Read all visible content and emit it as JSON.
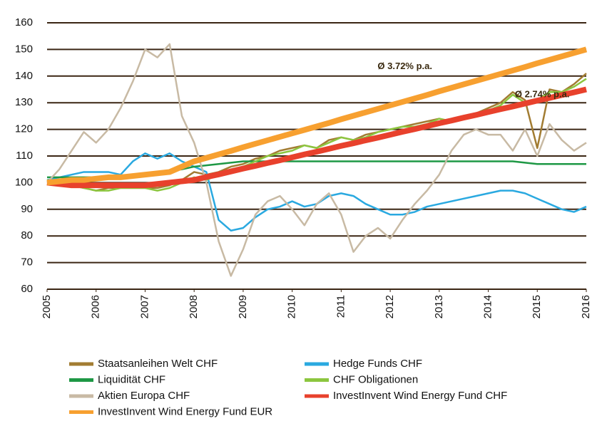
{
  "chart_data": {
    "type": "line",
    "x": [
      2005,
      2005.25,
      2005.5,
      2005.75,
      2006,
      2006.25,
      2006.5,
      2006.75,
      2007,
      2007.25,
      2007.5,
      2007.75,
      2008,
      2008.25,
      2008.5,
      2008.75,
      2009,
      2009.25,
      2009.5,
      2009.75,
      2010,
      2010.25,
      2010.5,
      2010.75,
      2011,
      2011.25,
      2011.5,
      2011.75,
      2012,
      2012.25,
      2012.5,
      2012.75,
      2013,
      2013.25,
      2013.5,
      2013.75,
      2014,
      2014.25,
      2014.5,
      2014.75,
      2015,
      2015.25,
      2015.5,
      2015.75,
      2016
    ],
    "xlim": [
      2005,
      2016
    ],
    "xticks": [
      2005,
      2006,
      2007,
      2008,
      2009,
      2010,
      2011,
      2012,
      2013,
      2014,
      2015,
      2016
    ],
    "ylim": [
      60,
      160
    ],
    "yticks": [
      60,
      70,
      80,
      90,
      100,
      110,
      120,
      130,
      140,
      150,
      160
    ],
    "grid": true,
    "series": [
      {
        "name": "Staatsanleihen Welt CHF",
        "color": "#a27c32",
        "width": 2.5,
        "values": [
          101,
          100,
          99,
          98,
          97,
          98,
          98,
          98,
          98,
          98,
          99,
          101,
          104,
          103,
          104,
          106,
          107,
          109,
          110,
          112,
          113,
          114,
          113,
          116,
          117,
          116,
          118,
          119,
          120,
          121,
          122,
          123,
          124,
          123,
          124,
          126,
          128,
          130,
          134,
          131,
          113,
          135,
          134,
          137,
          141
        ]
      },
      {
        "name": "Hedge Funds CHF",
        "color": "#2aa9e0",
        "width": 2.5,
        "values": [
          101,
          102,
          103,
          104,
          104,
          104,
          103,
          108,
          111,
          109,
          111,
          108,
          106,
          104,
          86,
          82,
          83,
          87,
          90,
          91,
          93,
          91,
          92,
          95,
          96,
          95,
          92,
          90,
          88,
          88,
          89,
          91,
          92,
          93,
          94,
          95,
          96,
          97,
          97,
          96,
          94,
          92,
          90,
          89,
          91
        ]
      },
      {
        "name": "Liquidität CHF",
        "color": "#1e9845",
        "width": 2.5,
        "values": [
          102,
          102,
          102,
          102,
          102,
          102,
          102.5,
          103,
          103.5,
          104,
          104.5,
          105,
          106,
          106.5,
          107,
          107.5,
          108,
          108,
          108,
          108,
          108,
          108,
          108,
          108,
          108,
          108,
          108,
          108,
          108,
          108,
          108,
          108,
          108,
          108,
          108,
          108,
          108,
          108,
          108,
          107.5,
          107,
          107,
          107,
          107,
          107
        ]
      },
      {
        "name": "CHF Obligationen",
        "color": "#8cc63f",
        "width": 2.5,
        "values": [
          101,
          100,
          99,
          98,
          97,
          97,
          98,
          98,
          98,
          97,
          98,
          100,
          102,
          101,
          103,
          105,
          106,
          108,
          110,
          111,
          112,
          114,
          113,
          115,
          117,
          116,
          117,
          119,
          120,
          121,
          121,
          122,
          124,
          123,
          124,
          125,
          127,
          129,
          133,
          130,
          131,
          134,
          134,
          136,
          139
        ]
      },
      {
        "name": "Aktien Europa CHF",
        "color": "#c8baa4",
        "width": 2.5,
        "values": [
          100,
          105,
          112,
          119,
          115,
          120,
          128,
          138,
          150,
          147,
          152,
          125,
          115,
          100,
          78,
          65,
          75,
          88,
          93,
          95,
          90,
          84,
          92,
          96,
          88,
          74,
          80,
          83,
          79,
          86,
          92,
          97,
          103,
          112,
          118,
          120,
          118,
          118,
          112,
          120,
          110,
          122,
          116,
          112,
          115
        ]
      },
      {
        "name": "InvestInvent Wind Energy Fund CHF",
        "color": "#e8412c",
        "width": 8,
        "values": [
          100,
          99.5,
          99,
          99,
          99,
          99,
          99,
          99,
          99,
          99.5,
          100,
          100.5,
          101,
          102.1,
          103.1,
          104.2,
          105.3,
          106.3,
          107.4,
          108.4,
          109.5,
          110.6,
          111.6,
          112.7,
          113.8,
          114.8,
          115.9,
          116.9,
          118,
          119.1,
          120.1,
          121.2,
          122.3,
          123.3,
          124.4,
          125.4,
          126.5,
          127.6,
          128.6,
          129.7,
          130.8,
          131.8,
          132.9,
          133.9,
          135
        ]
      },
      {
        "name": "InvestInvent Wind Energy Fund EUR",
        "color": "#f7a030",
        "width": 8,
        "values": [
          100,
          100.5,
          101,
          101,
          101.5,
          102,
          102,
          102.5,
          103,
          103.5,
          104,
          106,
          108,
          109.3,
          110.6,
          111.9,
          113.3,
          114.6,
          115.9,
          117.2,
          118.5,
          119.8,
          121.1,
          122.4,
          123.8,
          125.1,
          126.4,
          127.7,
          129,
          130.3,
          131.6,
          132.9,
          134.3,
          135.6,
          136.9,
          138.2,
          139.5,
          140.8,
          142.1,
          143.4,
          144.8,
          146.1,
          147.4,
          148.7,
          150
        ]
      }
    ],
    "annotations": [
      {
        "text": "Ø 3.72% p.a.",
        "x": 2012.3,
        "y": 143.5
      },
      {
        "text": "Ø 2.74% p.a.",
        "x": 2015.1,
        "y": 133
      }
    ]
  }
}
